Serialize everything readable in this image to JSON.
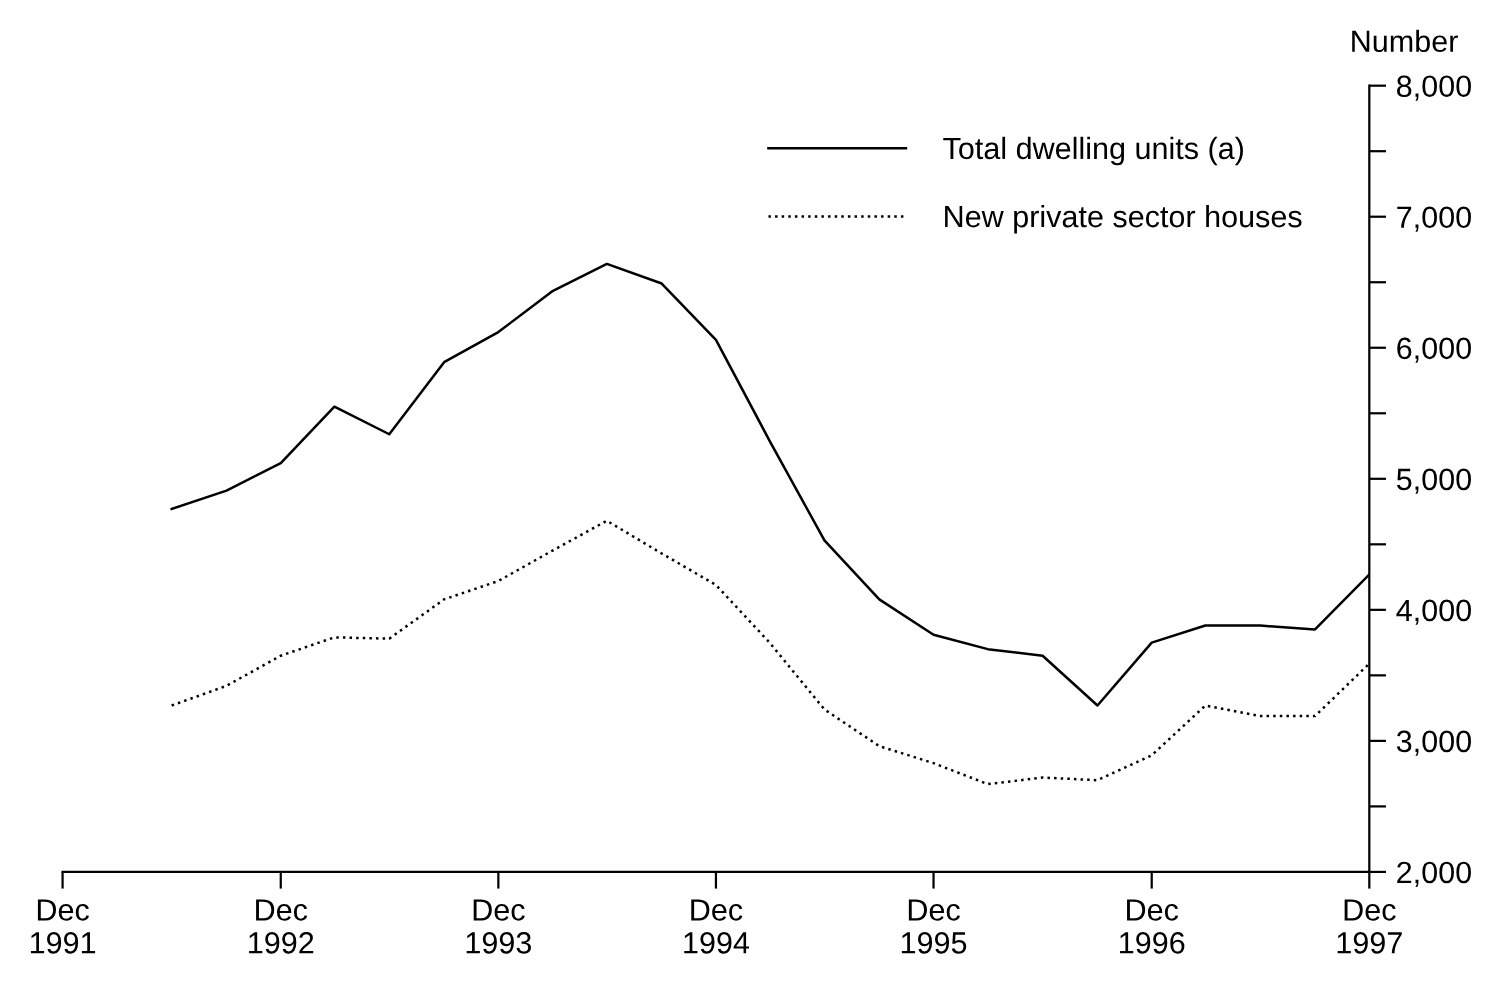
{
  "chart_data": {
    "type": "line",
    "ylabel": "Number",
    "x": [
      "1992-06",
      "1992-09",
      "1992-12",
      "1993-03",
      "1993-06",
      "1993-09",
      "1993-12",
      "1994-03",
      "1994-06",
      "1994-09",
      "1994-12",
      "1995-03",
      "1995-06",
      "1995-09",
      "1995-12",
      "1996-03",
      "1996-06",
      "1996-09",
      "1996-12",
      "1997-03",
      "1997-06",
      "1997-09",
      "1997-12"
    ],
    "series": [
      {
        "name": "Total dwelling units (a)",
        "color": "#000000",
        "line_style": "solid",
        "values": [
          4770,
          4910,
          5120,
          5550,
          5340,
          5890,
          6120,
          6430,
          6640,
          6490,
          6060,
          5290,
          4530,
          4080,
          3810,
          3700,
          3650,
          3270,
          3750,
          3880,
          3880,
          3850,
          4270
        ]
      },
      {
        "name": "New private sector houses",
        "color": "#000000",
        "line_style": "dotted",
        "values": [
          3270,
          3420,
          3650,
          3790,
          3780,
          4080,
          4220,
          4450,
          4680,
          4430,
          4190,
          3750,
          3240,
          2960,
          2830,
          2670,
          2720,
          2700,
          2890,
          3270,
          3190,
          3190,
          3590
        ]
      }
    ],
    "xlim": [
      "1991-12",
      "1997-12"
    ],
    "xticks": [
      {
        "value": "1991-12",
        "label": "Dec\n1991"
      },
      {
        "value": "1992-12",
        "label": "Dec\n1992"
      },
      {
        "value": "1993-12",
        "label": "Dec\n1993"
      },
      {
        "value": "1994-12",
        "label": "Dec\n1994"
      },
      {
        "value": "1995-12",
        "label": "Dec\n1995"
      },
      {
        "value": "1996-12",
        "label": "Dec\n1996"
      },
      {
        "value": "1997-12",
        "label": "Dec\n1997"
      }
    ],
    "ylim": [
      2000,
      8000
    ],
    "yticks": [
      {
        "value": 2000,
        "label": "2,000"
      },
      {
        "value": 2500,
        "label": null
      },
      {
        "value": 3000,
        "label": "3,000"
      },
      {
        "value": 3500,
        "label": null
      },
      {
        "value": 4000,
        "label": "4,000"
      },
      {
        "value": 4500,
        "label": null
      },
      {
        "value": 5000,
        "label": "5,000"
      },
      {
        "value": 5500,
        "label": null
      },
      {
        "value": 6000,
        "label": "6,000"
      },
      {
        "value": 6500,
        "label": null
      },
      {
        "value": 7000,
        "label": "7,000"
      },
      {
        "value": 7500,
        "label": null
      },
      {
        "value": 8000,
        "label": "8,000"
      }
    ],
    "grid": false,
    "legend": "top right"
  }
}
